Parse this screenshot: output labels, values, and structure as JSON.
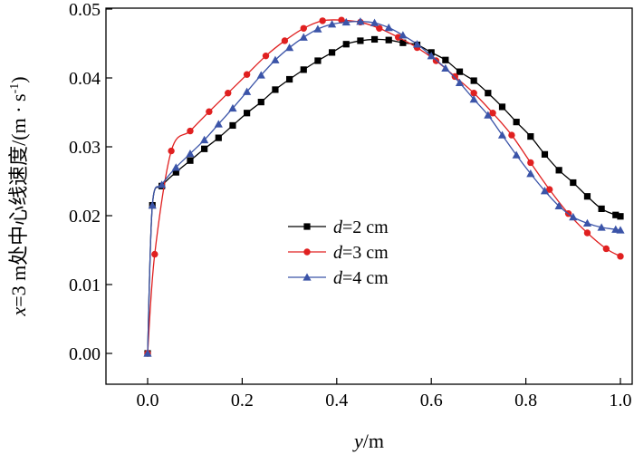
{
  "chart_data": {
    "type": "line",
    "title": "",
    "xlabel": {
      "var": "y",
      "unit": "/m"
    },
    "ylabel": {
      "var": "x",
      "rest": "=3 m处中心线速度/(m · s",
      "sup": "-1",
      "end": ")"
    },
    "xlim": [
      0.0,
      1.0
    ],
    "ylim": [
      0.0,
      0.05
    ],
    "xticks": [
      "0.0",
      "0.2",
      "0.4",
      "0.6",
      "0.8",
      "1.0"
    ],
    "yticks": [
      "0.00",
      "0.01",
      "0.02",
      "0.03",
      "0.04",
      "0.05"
    ],
    "grid": false,
    "legend_position": "center-left",
    "series": [
      {
        "name": "d=2 cm",
        "legend_var": "d",
        "legend_rest": "=2 cm",
        "color": "#000000",
        "marker": "square",
        "x": [
          0.0,
          0.01,
          0.03,
          0.06,
          0.09,
          0.12,
          0.15,
          0.18,
          0.21,
          0.24,
          0.27,
          0.3,
          0.33,
          0.36,
          0.39,
          0.42,
          0.45,
          0.48,
          0.51,
          0.54,
          0.57,
          0.6,
          0.63,
          0.66,
          0.69,
          0.72,
          0.75,
          0.78,
          0.81,
          0.84,
          0.87,
          0.9,
          0.93,
          0.96,
          0.99,
          1.0
        ],
        "y": [
          0.0,
          0.0215,
          0.0243,
          0.0263,
          0.028,
          0.0297,
          0.0313,
          0.0331,
          0.0349,
          0.0365,
          0.0383,
          0.0398,
          0.0412,
          0.0425,
          0.0437,
          0.0449,
          0.0454,
          0.0456,
          0.0455,
          0.0451,
          0.0448,
          0.0437,
          0.0426,
          0.0409,
          0.0396,
          0.0378,
          0.0358,
          0.0336,
          0.0315,
          0.0289,
          0.0266,
          0.0248,
          0.0228,
          0.021,
          0.0201,
          0.0199
        ]
      },
      {
        "name": "d=3 cm",
        "legend_var": "d",
        "legend_rest": "=3 cm",
        "color": "#e02020",
        "marker": "circle",
        "x": [
          0.0,
          0.015,
          0.05,
          0.09,
          0.13,
          0.17,
          0.21,
          0.25,
          0.29,
          0.33,
          0.37,
          0.41,
          0.45,
          0.49,
          0.53,
          0.57,
          0.61,
          0.65,
          0.69,
          0.73,
          0.77,
          0.81,
          0.85,
          0.89,
          0.93,
          0.97,
          1.0
        ],
        "y": [
          0.0,
          0.0144,
          0.0294,
          0.0323,
          0.0351,
          0.0378,
          0.0405,
          0.0432,
          0.0454,
          0.0472,
          0.0483,
          0.0484,
          0.0481,
          0.0472,
          0.0459,
          0.0444,
          0.0425,
          0.0402,
          0.0378,
          0.0349,
          0.0317,
          0.0277,
          0.0238,
          0.0203,
          0.0175,
          0.0152,
          0.0141
        ]
      },
      {
        "name": "d=4 cm",
        "legend_var": "d",
        "legend_rest": "=4 cm",
        "color": "#3b54a8",
        "marker": "triangle",
        "x": [
          0.0,
          0.01,
          0.03,
          0.06,
          0.09,
          0.12,
          0.15,
          0.18,
          0.21,
          0.24,
          0.27,
          0.3,
          0.33,
          0.36,
          0.39,
          0.42,
          0.45,
          0.48,
          0.51,
          0.54,
          0.57,
          0.6,
          0.63,
          0.66,
          0.69,
          0.72,
          0.75,
          0.78,
          0.81,
          0.84,
          0.87,
          0.9,
          0.93,
          0.96,
          0.99,
          1.0
        ],
        "y": [
          0.0,
          0.0215,
          0.0245,
          0.027,
          0.029,
          0.031,
          0.0333,
          0.0356,
          0.038,
          0.0404,
          0.0426,
          0.0444,
          0.0459,
          0.0471,
          0.0478,
          0.0481,
          0.0482,
          0.048,
          0.0473,
          0.0462,
          0.0449,
          0.0432,
          0.0414,
          0.0393,
          0.0369,
          0.0346,
          0.0317,
          0.0288,
          0.0261,
          0.0236,
          0.0214,
          0.0198,
          0.0189,
          0.0183,
          0.018,
          0.0179
        ]
      }
    ]
  }
}
